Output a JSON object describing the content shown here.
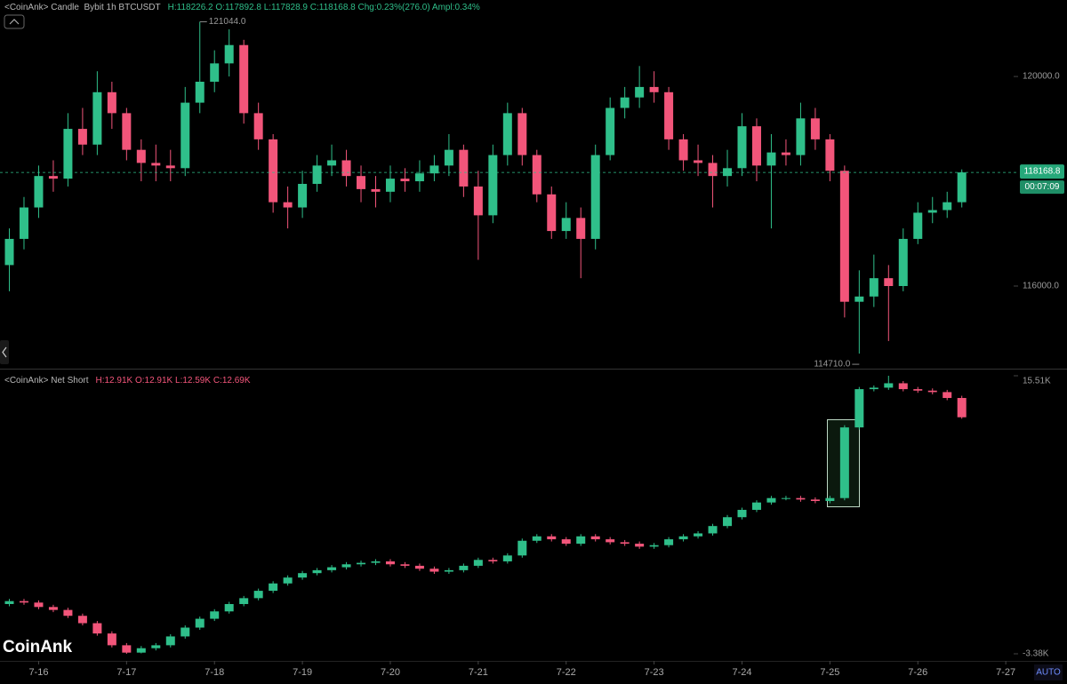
{
  "chart_data": [
    {
      "type": "candlestick",
      "header_label": "<CoinAnk> Candle  Bybit 1h BTCUSDT",
      "header_values": "H:118226.2 O:117892.8 L:117828.9 C:118168.8 Chg:0.23%(276.0) Ampl:0.34%",
      "up_color": "#2fbf8a",
      "down_color": "#f2557a",
      "open": [
        116400,
        116900,
        117500,
        118100,
        118050,
        119000,
        118700,
        119700,
        119300,
        118600,
        118350,
        118300,
        118250,
        119500,
        119900,
        120250,
        120600,
        119300,
        118800,
        117600,
        117500,
        117950,
        118300,
        118400,
        118100,
        117850,
        117800,
        118050,
        118000,
        118150,
        118300,
        118600,
        117900,
        117350,
        118500,
        119300,
        118500,
        117750,
        117050,
        117300,
        116900,
        118500,
        119400,
        119600,
        119800,
        119700,
        118800,
        118400,
        118350,
        118100,
        118250,
        119050,
        118300,
        118550,
        118500,
        119200,
        118800,
        118200,
        115700,
        115800,
        116150,
        116000,
        116900,
        117400,
        117450,
        117600
      ],
      "high": [
        117100,
        117700,
        118300,
        118400,
        119300,
        119400,
        120100,
        119900,
        119400,
        118800,
        118700,
        118600,
        119800,
        121044,
        120500,
        120900,
        120700,
        119500,
        118900,
        117900,
        118200,
        118500,
        118700,
        118600,
        118300,
        118100,
        118300,
        118250,
        118400,
        118500,
        118900,
        118700,
        118200,
        118700,
        119500,
        119400,
        118600,
        117900,
        117600,
        117500,
        118700,
        119600,
        119800,
        120200,
        120100,
        119800,
        118900,
        118700,
        118500,
        118600,
        119300,
        119200,
        118900,
        118800,
        119500,
        119400,
        118900,
        118300,
        116300,
        116600,
        116400,
        117100,
        117600,
        117700,
        117800,
        118226.2
      ],
      "low": [
        115900,
        116700,
        117300,
        117800,
        117900,
        118500,
        118500,
        119000,
        118400,
        118000,
        118000,
        118000,
        118100,
        119300,
        119700,
        120000,
        119100,
        118600,
        117400,
        117100,
        117300,
        117800,
        118100,
        117900,
        117600,
        117500,
        117600,
        117800,
        117800,
        118000,
        118100,
        117700,
        116500,
        117200,
        118300,
        118300,
        117600,
        116900,
        116900,
        116150,
        116700,
        118400,
        119200,
        119400,
        119500,
        118600,
        118200,
        118100,
        117500,
        117900,
        118100,
        118000,
        117100,
        118300,
        118300,
        118600,
        118000,
        115400,
        114710,
        115600,
        114950,
        115900,
        116800,
        117200,
        117300,
        117500
      ],
      "close": [
        116900,
        117500,
        118100,
        118050,
        119000,
        118700,
        119700,
        119300,
        118600,
        118350,
        118300,
        118250,
        119500,
        119900,
        120250,
        120600,
        119300,
        118800,
        117600,
        117500,
        117950,
        118300,
        118400,
        118100,
        117850,
        117800,
        118050,
        118000,
        118150,
        118300,
        118600,
        117900,
        117350,
        118500,
        119300,
        118500,
        117750,
        117050,
        117300,
        116900,
        118500,
        119400,
        119600,
        119800,
        119700,
        118800,
        118400,
        118350,
        118100,
        118250,
        119050,
        118300,
        118550,
        118500,
        119200,
        118800,
        118200,
        115700,
        115800,
        116150,
        116000,
        116900,
        117400,
        117450,
        117600,
        118168.8
      ],
      "ylim": [
        114440,
        121460
      ],
      "yticks": [
        {
          "value": 116000,
          "label": "116000.0"
        },
        {
          "value": 120000,
          "label": "120000.0"
        }
      ],
      "last_price": 118168.8,
      "countdown": "00:07:09",
      "annotations": [
        {
          "value": 121044,
          "label": "121044.0",
          "at": "high"
        },
        {
          "value": 114710,
          "label": "114710.0",
          "at": "low"
        }
      ]
    },
    {
      "type": "candlestick",
      "header_label": "<CoinAnk> Net Short",
      "header_values": "H:12.91K O:12.91K L:12.59K C:12.69K",
      "up_color": "#2fbf8a",
      "down_color": "#f2557a",
      "open": [
        0.0,
        0.2,
        0.1,
        -0.2,
        -0.4,
        -0.8,
        -1.3,
        -2.0,
        -2.8,
        -3.3,
        -3.0,
        -2.8,
        -2.2,
        -1.6,
        -1.0,
        -0.5,
        0.0,
        0.4,
        0.9,
        1.4,
        1.8,
        2.1,
        2.3,
        2.5,
        2.7,
        2.8,
        2.9,
        2.7,
        2.6,
        2.4,
        2.2,
        2.3,
        2.6,
        3.0,
        2.9,
        3.3,
        4.3,
        4.6,
        4.4,
        4.1,
        4.6,
        4.4,
        4.2,
        4.1,
        3.9,
        4.0,
        4.4,
        4.6,
        4.8,
        5.3,
        5.9,
        6.4,
        6.9,
        7.2,
        7.2,
        7.1,
        7.0,
        7.2,
        12.0,
        14.6,
        14.7,
        15.0,
        14.6,
        14.5,
        14.4,
        14.0
      ],
      "high": [
        0.35,
        0.35,
        0.25,
        -0.05,
        -0.25,
        -0.65,
        -1.15,
        -1.85,
        -2.65,
        -2.85,
        -2.65,
        -2.05,
        -1.45,
        -0.85,
        -0.35,
        0.15,
        0.55,
        1.05,
        1.55,
        1.95,
        2.25,
        2.45,
        2.65,
        2.85,
        2.95,
        3.05,
        3.05,
        2.85,
        2.75,
        2.55,
        2.45,
        2.75,
        3.15,
        3.15,
        3.45,
        4.45,
        4.75,
        4.75,
        4.55,
        4.75,
        4.75,
        4.55,
        4.35,
        4.25,
        4.15,
        4.55,
        4.75,
        4.95,
        5.45,
        6.05,
        6.55,
        7.05,
        7.35,
        7.35,
        7.35,
        7.25,
        7.35,
        12.15,
        14.75,
        14.85,
        15.51,
        15.15,
        14.75,
        14.65,
        14.55,
        14.15
      ],
      "low": [
        -0.15,
        -0.05,
        -0.35,
        -0.55,
        -0.95,
        -1.45,
        -2.15,
        -2.95,
        -3.38,
        -3.35,
        -3.15,
        -2.95,
        -2.35,
        -1.75,
        -1.15,
        -0.65,
        -0.15,
        0.25,
        0.75,
        1.25,
        1.65,
        1.95,
        2.15,
        2.35,
        2.55,
        2.65,
        2.55,
        2.45,
        2.25,
        2.05,
        2.05,
        2.15,
        2.45,
        2.75,
        2.75,
        3.15,
        4.15,
        4.25,
        3.95,
        3.95,
        4.25,
        4.05,
        3.95,
        3.75,
        3.75,
        3.85,
        4.25,
        4.45,
        4.65,
        5.15,
        5.75,
        6.25,
        6.75,
        7.05,
        6.95,
        6.85,
        6.85,
        7.05,
        11.85,
        14.45,
        14.55,
        14.45,
        14.35,
        14.25,
        13.85,
        12.59
      ],
      "close": [
        0.2,
        0.1,
        -0.2,
        -0.4,
        -0.8,
        -1.3,
        -2.0,
        -2.8,
        -3.3,
        -3.0,
        -2.8,
        -2.2,
        -1.6,
        -1.0,
        -0.5,
        0.0,
        0.4,
        0.9,
        1.4,
        1.8,
        2.1,
        2.3,
        2.5,
        2.7,
        2.8,
        2.9,
        2.7,
        2.6,
        2.4,
        2.2,
        2.3,
        2.6,
        3.0,
        2.9,
        3.3,
        4.3,
        4.6,
        4.4,
        4.1,
        4.6,
        4.4,
        4.2,
        4.1,
        3.9,
        4.0,
        4.4,
        4.6,
        4.8,
        5.3,
        5.9,
        6.4,
        6.9,
        7.2,
        7.2,
        7.1,
        7.0,
        7.2,
        12.0,
        14.6,
        14.7,
        15.0,
        14.6,
        14.5,
        14.4,
        14.0,
        12.69
      ],
      "ylim": [
        -3.38,
        15.51
      ],
      "yticks": [
        {
          "value": -3.38,
          "label": "-3.38K"
        },
        {
          "value": 15.51,
          "label": "15.51K"
        }
      ]
    }
  ],
  "x_labels": [
    "7-16",
    "7-17",
    "7-18",
    "7-19",
    "7-20",
    "7-21",
    "7-22",
    "7-23",
    "7-24",
    "7-25",
    "7-26",
    "7-27"
  ],
  "watermark": "CoinAnk",
  "auto_button": "AUTO"
}
